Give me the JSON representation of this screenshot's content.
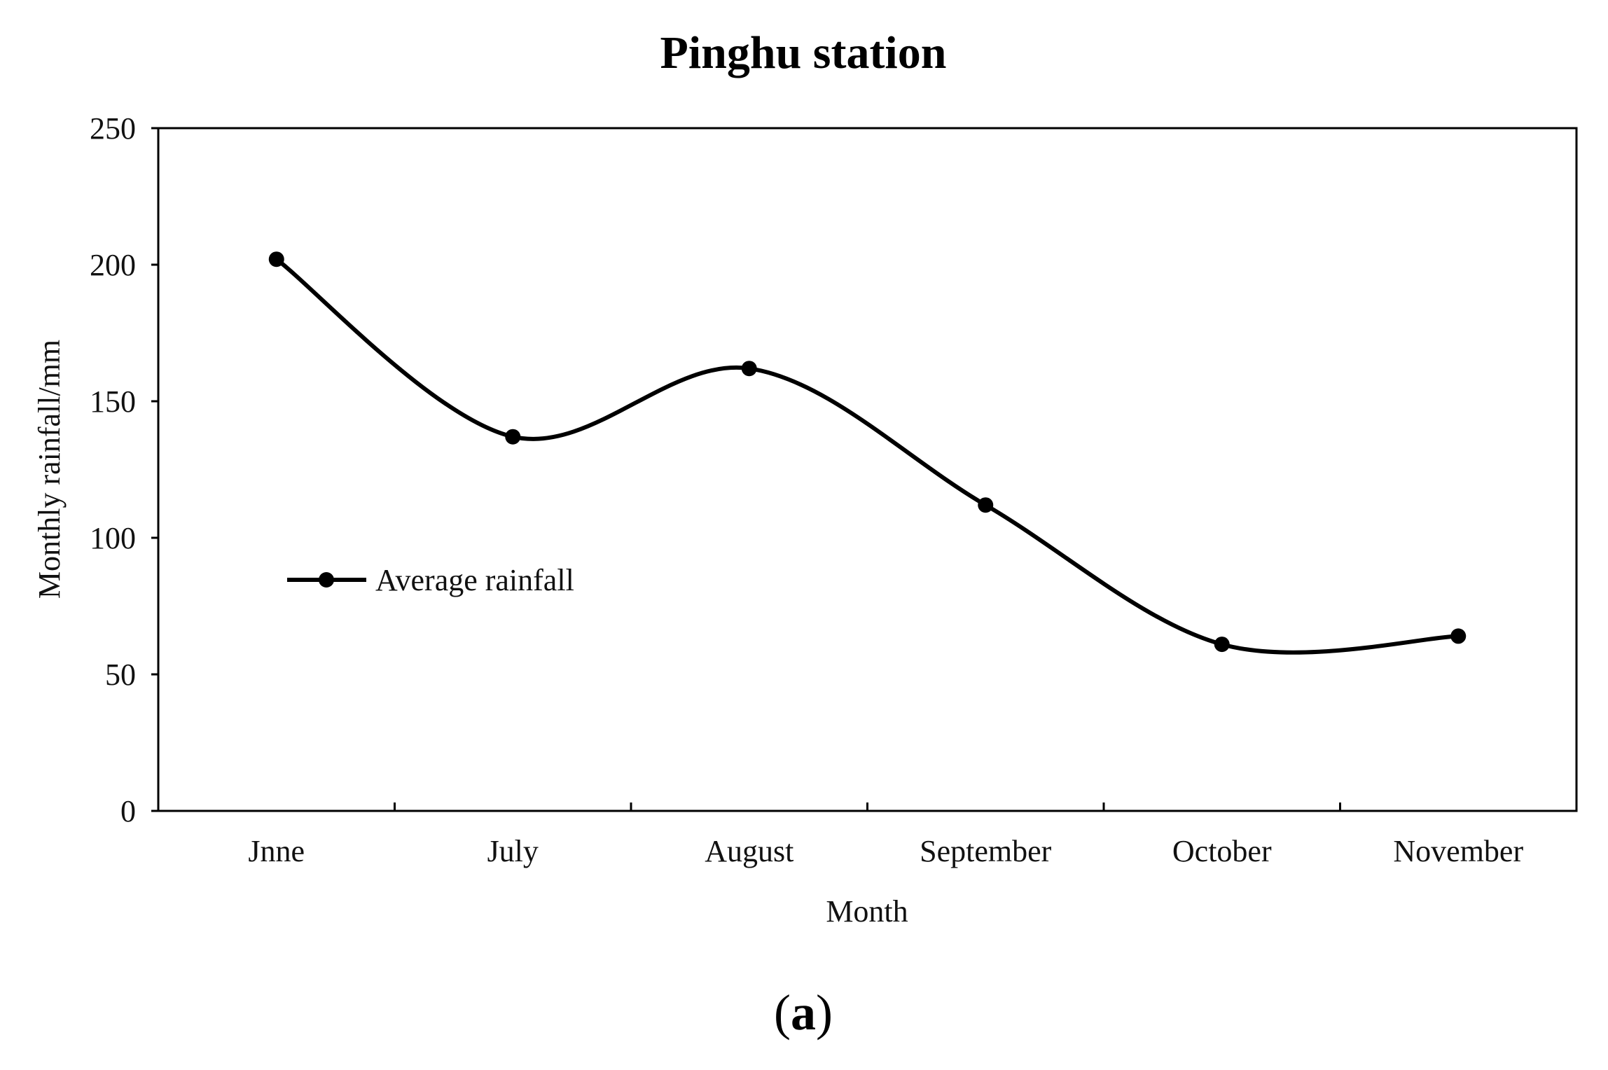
{
  "chart_data": {
    "type": "line",
    "title": "Pinghu station",
    "xlabel": "Month",
    "ylabel": "Monthly rainfall/mm",
    "categories": [
      "Jnne",
      "July",
      "August",
      "September",
      "October",
      "November"
    ],
    "series": [
      {
        "name": "Average rainfall",
        "values": [
          202,
          137,
          162,
          112,
          61,
          64
        ],
        "color": "#000000",
        "marker": "circle",
        "smooth": true
      }
    ],
    "ylim": [
      0,
      250
    ],
    "yticks": [
      0,
      50,
      100,
      150,
      200,
      250
    ],
    "grid": false,
    "legend_position": "middle-left"
  },
  "panel_label": {
    "open": "(",
    "letter": "a",
    "close": ")"
  }
}
